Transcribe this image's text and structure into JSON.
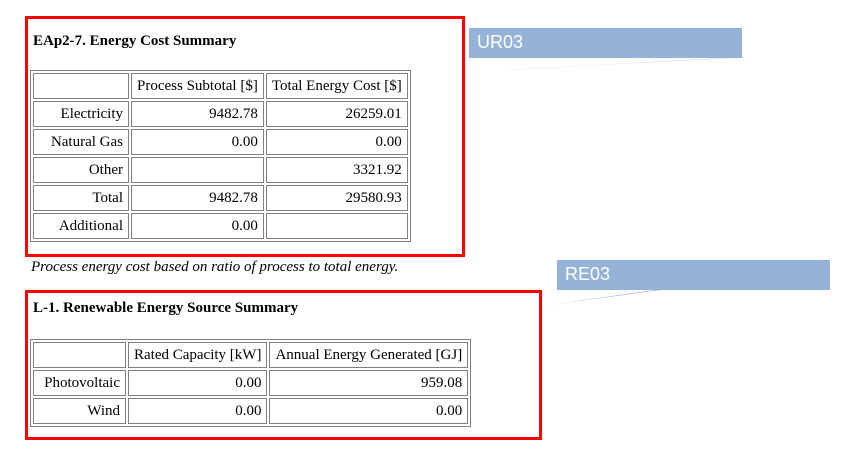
{
  "energy_cost": {
    "title": "EAp2-7. Energy Cost Summary",
    "headers": [
      "",
      "Process Subtotal [$]",
      "Total Energy Cost [$]"
    ],
    "rows": [
      [
        "Electricity",
        "9482.78",
        "26259.01"
      ],
      [
        "Natural Gas",
        "0.00",
        "0.00"
      ],
      [
        "Other",
        "",
        "3321.92"
      ],
      [
        "Total",
        "9482.78",
        "29580.93"
      ],
      [
        "Additional",
        "0.00",
        ""
      ]
    ],
    "footnote": "Process energy cost based on ratio of process to total energy."
  },
  "renewable": {
    "title": "L-1. Renewable Energy Source Summary",
    "headers": [
      "",
      "Rated Capacity [kW]",
      "Annual Energy Generated [GJ]"
    ],
    "rows": [
      [
        "Photovoltaic",
        "0.00",
        "959.08"
      ],
      [
        "Wind",
        "0.00",
        "0.00"
      ]
    ]
  },
  "callouts": {
    "ur": {
      "label": "UR03",
      "color": "#ff0000",
      "label_bg": "#95b3d7"
    },
    "re": {
      "label": "RE03",
      "color": "#ff0000",
      "label_bg": "#95b3d7"
    }
  }
}
